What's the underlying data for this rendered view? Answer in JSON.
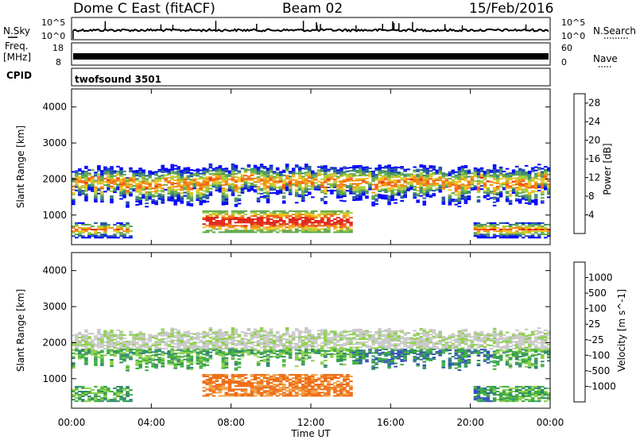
{
  "header": {
    "station": "Dome C East (fitACF)",
    "beam": "Beam 02",
    "date": "15/Feb/2016"
  },
  "left_labels": {
    "nsky": "N.Sky",
    "freq_line1": "Freq.",
    "freq_line2": "[MHz]",
    "cpid": "CPID"
  },
  "right_labels": {
    "nsearch": "N.Search",
    "nave": "Nave"
  },
  "noise_axis": {
    "top": "10^5",
    "bottom": "10^0"
  },
  "freq_axis": {
    "top": "18",
    "bottom": "8"
  },
  "nave_axis": {
    "top": "60",
    "bottom": "0"
  },
  "cpid_text": "twofsound 3501",
  "colors": {
    "power_scale": [
      "#0000ff",
      "#1e4fa8",
      "#3d8a6a",
      "#5fa84a",
      "#a8cc3a",
      "#f0c020",
      "#f08a10",
      "#f05a10",
      "#e02010"
    ],
    "velocity_scale": [
      "#ee1111",
      "#ee6a10",
      "#f0a040",
      "#c8c8c8",
      "#8bd048",
      "#3cae3c",
      "#2f8a6a",
      "#3050b8",
      "#2030c0"
    ],
    "background": "#ffffff"
  },
  "chart_data": [
    {
      "type": "heatmap",
      "title": "Power",
      "xlabel": "",
      "ylabel": "Slant Range [km]",
      "xlim": [
        "00:00",
        "00:00"
      ],
      "x_ticks": [
        "00:00",
        "04:00",
        "08:00",
        "12:00",
        "16:00",
        "20:00",
        "00:00"
      ],
      "ylim": [
        180,
        4500
      ],
      "y_ticks": [
        1000,
        2000,
        3000,
        4000
      ],
      "colorbar": {
        "label": "Power [dB]",
        "ticks": [
          4,
          8,
          12,
          16,
          20,
          24,
          28
        ],
        "range": [
          0,
          30
        ]
      }
    },
    {
      "type": "heatmap",
      "title": "Velocity",
      "xlabel": "Time UT",
      "ylabel": "Slant Range [km]",
      "xlim": [
        "00:00",
        "00:00"
      ],
      "x_ticks": [
        "00:00",
        "04:00",
        "08:00",
        "12:00",
        "16:00",
        "20:00",
        "00:00"
      ],
      "ylim": [
        180,
        4500
      ],
      "y_ticks": [
        1000,
        2000,
        3000,
        4000
      ],
      "colorbar": {
        "label": "Velocity [m s^-1]",
        "ticks": [
          1000,
          500,
          100,
          25,
          -25,
          -100,
          -500,
          -1000
        ]
      }
    }
  ]
}
